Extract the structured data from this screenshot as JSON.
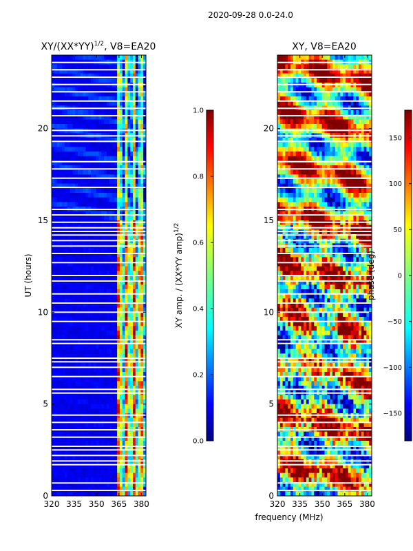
{
  "figure": {
    "suptitle": "2020-09-28 0.0-24.0",
    "xlabel": "frequency (MHz)"
  },
  "colors": {
    "jet": [
      "#00007f",
      "#0000ff",
      "#007fff",
      "#00ffff",
      "#7fff7f",
      "#ffff00",
      "#ff7f00",
      "#ff0000",
      "#7f0000"
    ],
    "gap": "#ffffff",
    "frame": "#000000"
  },
  "chart_data": [
    {
      "type": "heatmap",
      "title": "XY/(XX*YY)^1/2, V8=EA20",
      "title_main": "XY/(XX*YY)",
      "title_exp": "1/2",
      "title_tail": ", V8=EA20",
      "xlabel": "frequency (MHz)",
      "ylabel": "UT (hours)",
      "xlim": [
        320,
        383
      ],
      "ylim": [
        0,
        24
      ],
      "xticks": [
        320,
        335,
        350,
        365,
        380
      ],
      "yticks": [
        0,
        5,
        10,
        15,
        20
      ],
      "colorbar": {
        "label": "XY amp. / (XX*YY amp)^1/2",
        "label_main": "XY amp. / (XX*YY amp)",
        "label_exp": "1/2",
        "range": [
          0.0,
          1.0
        ],
        "ticks": [
          "0.0",
          "0.2",
          "0.4",
          "0.6",
          "0.8",
          "1.0"
        ],
        "tick_values": [
          0.0,
          0.2,
          0.4,
          0.6,
          0.8,
          1.0
        ]
      },
      "bright_channel_band_MHz": [
        364,
        383
      ],
      "flagged_hours": [
        0.3,
        0.7,
        1.7,
        1.9,
        2.2,
        2.5,
        2.7,
        3.2,
        3.6,
        4.0,
        4.4,
        5.6,
        5.8,
        6.5,
        7.0,
        7.3,
        7.5,
        8.3,
        8.5,
        9.5,
        10.0,
        10.5,
        11.0,
        11.7,
        12.0,
        12.7,
        13.2,
        13.6,
        13.9,
        14.2,
        14.4,
        14.6,
        14.9,
        15.3,
        15.6,
        16.8,
        17.3,
        17.8,
        18.2,
        19.3,
        19.6,
        19.9,
        20.7,
        21.1,
        21.5,
        22.0,
        22.4,
        22.8,
        23.2,
        23.6
      ]
    },
    {
      "type": "heatmap",
      "title": "XY, V8=EA20",
      "xlabel": "frequency (MHz)",
      "ylabel": "",
      "xlim": [
        320,
        383
      ],
      "ylim": [
        0,
        24
      ],
      "xticks": [
        320,
        335,
        350,
        365,
        380
      ],
      "yticks": [
        0,
        5,
        10,
        15,
        20
      ],
      "colorbar": {
        "label": "phase (deg)",
        "range": [
          -180,
          180
        ],
        "ticks": [
          "−150",
          "−100",
          "−50",
          "0",
          "50",
          "100",
          "150"
        ],
        "tick_values": [
          -150,
          -100,
          -50,
          0,
          50,
          100,
          150
        ]
      },
      "flagged_hours": [
        0.3,
        0.7,
        1.7,
        1.9,
        2.2,
        2.5,
        2.7,
        3.2,
        3.6,
        4.0,
        4.4,
        5.6,
        5.8,
        6.5,
        7.0,
        7.3,
        7.5,
        8.3,
        8.5,
        9.5,
        10.0,
        10.5,
        11.0,
        11.7,
        12.0,
        12.7,
        13.2,
        13.6,
        13.9,
        14.2,
        14.4,
        14.6,
        14.9,
        15.3,
        15.6,
        16.8,
        17.3,
        17.8,
        18.2,
        19.3,
        19.6,
        19.9,
        20.7,
        21.1,
        21.5,
        22.0,
        22.4,
        22.8,
        23.2,
        23.6
      ]
    }
  ]
}
